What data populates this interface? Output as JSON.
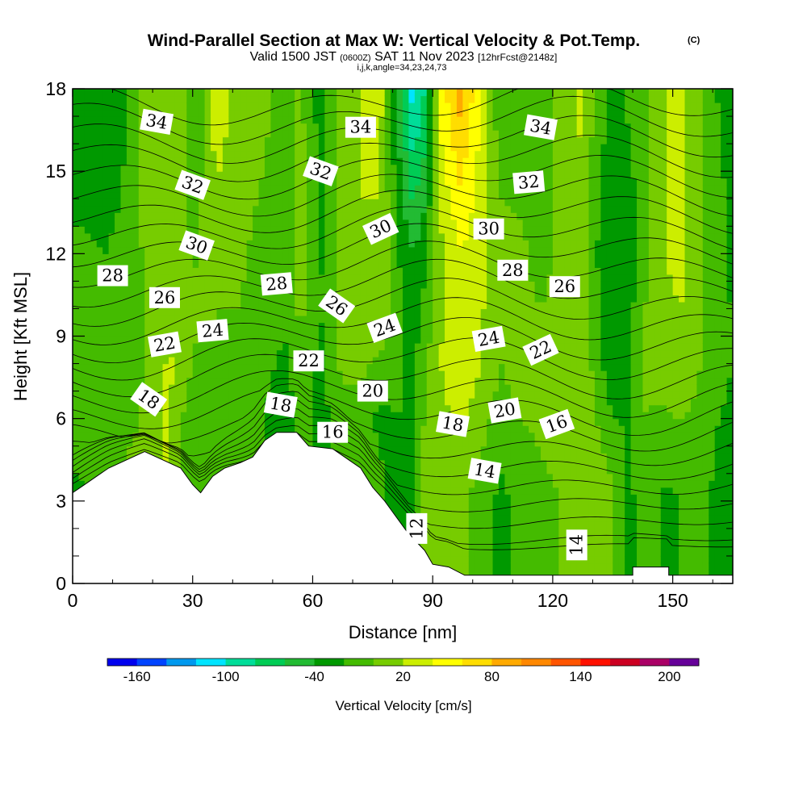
{
  "title": {
    "main": "Wind-Parallel Section at Max W: Vertical Velocity & Pot.Temp.",
    "copyright": "(C)",
    "valid_prefix": "Valid 1500 JST",
    "valid_utc": "(0600Z)",
    "valid_date": "SAT 11 Nov 2023",
    "forecast": "[12hrFcst@2148z]",
    "indices": "i,j,k,angle=34,23,24,73"
  },
  "chart_data": {
    "type": "heatmap",
    "xlabel": "Distance [nm]",
    "ylabel": "Height [Kft MSL]",
    "xlim": [
      0,
      165
    ],
    "ylim": [
      0,
      18
    ],
    "x_ticks": [
      "0",
      "30",
      "60",
      "90",
      "120",
      "150"
    ],
    "y_ticks": [
      "0",
      "3",
      "6",
      "9",
      "12",
      "15",
      "18"
    ],
    "colorbar": {
      "label": "Vertical Velocity [cm/s]",
      "tick_labels": [
        "-160",
        "-100",
        "-40",
        "20",
        "80",
        "140",
        "200"
      ],
      "tick_values": [
        -160,
        -100,
        -40,
        20,
        80,
        140,
        200
      ],
      "bounds": [
        -180,
        220
      ],
      "levels": [
        -180,
        -160,
        -140,
        -120,
        -100,
        -80,
        -60,
        -40,
        -20,
        0,
        20,
        40,
        60,
        80,
        100,
        120,
        140,
        160,
        180,
        200,
        220
      ],
      "colors": [
        "#0000ee",
        "#0044ff",
        "#0099ee",
        "#00e4ff",
        "#00dd99",
        "#00cc55",
        "#22bb33",
        "#009900",
        "#44bb00",
        "#77cc00",
        "#ccee00",
        "#ffff00",
        "#ffdd00",
        "#ffaa00",
        "#ff8800",
        "#ff5500",
        "#ff1100",
        "#cc0022",
        "#aa0066",
        "#660099"
      ]
    },
    "vertical_velocity_columns": [
      {
        "x": 0,
        "bands": [
          [
            3,
            -30
          ],
          [
            6,
            -5
          ],
          [
            18,
            -30
          ]
        ]
      },
      {
        "x": 8,
        "bands": [
          [
            6,
            -10
          ],
          [
            18,
            -30
          ]
        ]
      },
      {
        "x": 14,
        "bands": [
          [
            5,
            0
          ],
          [
            8,
            -15
          ],
          [
            18,
            -20
          ]
        ]
      },
      {
        "x": 19,
        "bands": [
          [
            5,
            5
          ],
          [
            8,
            5
          ],
          [
            18,
            15
          ]
        ]
      },
      {
        "x": 24,
        "bands": [
          [
            6,
            25
          ],
          [
            18,
            10
          ]
        ]
      },
      {
        "x": 28,
        "bands": [
          [
            5,
            -10
          ],
          [
            8,
            10
          ],
          [
            18,
            5
          ]
        ]
      },
      {
        "x": 30,
        "bands": [
          [
            6,
            -10
          ],
          [
            10,
            5
          ],
          [
            18,
            -25
          ]
        ]
      },
      {
        "x": 36,
        "bands": [
          [
            6,
            -5
          ],
          [
            10,
            0
          ],
          [
            18,
            35
          ]
        ]
      },
      {
        "x": 42,
        "bands": [
          [
            6,
            -10
          ],
          [
            10,
            0
          ],
          [
            18,
            10
          ]
        ]
      },
      {
        "x": 48,
        "bands": [
          [
            6,
            -20
          ],
          [
            10,
            -10
          ],
          [
            18,
            5
          ]
        ]
      },
      {
        "x": 53,
        "bands": [
          [
            6,
            -35
          ],
          [
            10,
            -15
          ],
          [
            18,
            -10
          ]
        ]
      },
      {
        "x": 57,
        "bands": [
          [
            6,
            -10
          ],
          [
            10,
            5
          ],
          [
            18,
            5
          ]
        ]
      },
      {
        "x": 62,
        "bands": [
          [
            6,
            -30
          ],
          [
            10,
            -20
          ],
          [
            18,
            -30
          ]
        ]
      },
      {
        "x": 67,
        "bands": [
          [
            6,
            -5
          ],
          [
            10,
            10
          ],
          [
            18,
            10
          ]
        ]
      },
      {
        "x": 72,
        "bands": [
          [
            6,
            -10
          ],
          [
            10,
            20
          ],
          [
            18,
            20
          ]
        ]
      },
      {
        "x": 77,
        "bands": [
          [
            3,
            -15
          ],
          [
            6,
            -25
          ],
          [
            10,
            15
          ],
          [
            18,
            25
          ]
        ]
      },
      {
        "x": 81,
        "bands": [
          [
            3,
            -30
          ],
          [
            6,
            -20
          ],
          [
            10,
            -10
          ],
          [
            18,
            -40
          ]
        ]
      },
      {
        "x": 85,
        "bands": [
          [
            3,
            -20
          ],
          [
            8,
            -25
          ],
          [
            12,
            -40
          ],
          [
            18,
            -110
          ]
        ]
      },
      {
        "x": 88,
        "bands": [
          [
            3,
            10
          ],
          [
            8,
            -5
          ],
          [
            12,
            -25
          ],
          [
            18,
            -80
          ]
        ]
      },
      {
        "x": 92,
        "bands": [
          [
            3,
            10
          ],
          [
            8,
            20
          ],
          [
            12,
            15
          ],
          [
            18,
            50
          ]
        ]
      },
      {
        "x": 97,
        "bands": [
          [
            3,
            5
          ],
          [
            8,
            35
          ],
          [
            12,
            40
          ],
          [
            18,
            90
          ]
        ]
      },
      {
        "x": 102,
        "bands": [
          [
            3,
            -10
          ],
          [
            8,
            20
          ],
          [
            12,
            25
          ],
          [
            18,
            40
          ]
        ]
      },
      {
        "x": 107,
        "bands": [
          [
            3,
            -25
          ],
          [
            8,
            0
          ],
          [
            12,
            10
          ],
          [
            18,
            -20
          ]
        ]
      },
      {
        "x": 112,
        "bands": [
          [
            3,
            -15
          ],
          [
            8,
            10
          ],
          [
            12,
            5
          ],
          [
            18,
            -20
          ]
        ]
      },
      {
        "x": 117,
        "bands": [
          [
            3,
            -5
          ],
          [
            8,
            10
          ],
          [
            12,
            -10
          ],
          [
            18,
            -15
          ]
        ]
      },
      {
        "x": 122,
        "bands": [
          [
            3,
            0
          ],
          [
            8,
            15
          ],
          [
            12,
            5
          ],
          [
            18,
            10
          ]
        ]
      },
      {
        "x": 127,
        "bands": [
          [
            3,
            20
          ],
          [
            8,
            20
          ],
          [
            12,
            10
          ],
          [
            18,
            25
          ]
        ]
      },
      {
        "x": 131,
        "bands": [
          [
            3,
            15
          ],
          [
            8,
            -10
          ],
          [
            12,
            -20
          ],
          [
            18,
            -5
          ]
        ]
      },
      {
        "x": 135,
        "bands": [
          [
            3,
            5
          ],
          [
            8,
            -35
          ],
          [
            12,
            -40
          ],
          [
            18,
            -30
          ]
        ]
      },
      {
        "x": 139,
        "bands": [
          [
            3,
            -25
          ],
          [
            8,
            -20
          ],
          [
            12,
            -35
          ],
          [
            18,
            -15
          ]
        ]
      },
      {
        "x": 143,
        "bands": [
          [
            3,
            -10
          ],
          [
            8,
            5
          ],
          [
            12,
            -5
          ],
          [
            18,
            -10
          ]
        ]
      },
      {
        "x": 148,
        "bands": [
          [
            3,
            -25
          ],
          [
            8,
            10
          ],
          [
            12,
            20
          ],
          [
            18,
            20
          ]
        ]
      },
      {
        "x": 152,
        "bands": [
          [
            3,
            -20
          ],
          [
            8,
            15
          ],
          [
            12,
            25
          ],
          [
            18,
            30
          ]
        ]
      },
      {
        "x": 157,
        "bands": [
          [
            3,
            -15
          ],
          [
            8,
            0
          ],
          [
            12,
            5
          ],
          [
            18,
            0
          ]
        ]
      },
      {
        "x": 161,
        "bands": [
          [
            3,
            -25
          ],
          [
            8,
            -15
          ],
          [
            12,
            -15
          ],
          [
            18,
            -20
          ]
        ]
      },
      {
        "x": 165,
        "bands": [
          [
            3,
            -30
          ],
          [
            8,
            -20
          ],
          [
            18,
            -25
          ]
        ]
      }
    ],
    "terrain_profile": [
      [
        0,
        3.3
      ],
      [
        3,
        3.6
      ],
      [
        6,
        3.9
      ],
      [
        9,
        4.2
      ],
      [
        18,
        4.8
      ],
      [
        27,
        4.2
      ],
      [
        30,
        3.6
      ],
      [
        32,
        3.3
      ],
      [
        35,
        3.9
      ],
      [
        38,
        4.2
      ],
      [
        42,
        4.4
      ],
      [
        45,
        4.6
      ],
      [
        48,
        5.2
      ],
      [
        51,
        5.5
      ],
      [
        56,
        5.5
      ],
      [
        59,
        5.0
      ],
      [
        65,
        4.9
      ],
      [
        69,
        4.5
      ],
      [
        72,
        4.2
      ],
      [
        75,
        3.5
      ],
      [
        78,
        3.0
      ],
      [
        80,
        2.6
      ],
      [
        82,
        2.2
      ],
      [
        84,
        1.8
      ],
      [
        86,
        1.5
      ],
      [
        88,
        1.2
      ],
      [
        90,
        0.7
      ],
      [
        94,
        0.6
      ],
      [
        98,
        0.3
      ],
      [
        140,
        0.3
      ],
      [
        140,
        0.6
      ],
      [
        149,
        0.6
      ],
      [
        149,
        0.3
      ],
      [
        165,
        0.3
      ]
    ],
    "theta_contour_labels": [
      {
        "text": "34",
        "x": 21,
        "y": 16.8,
        "angle": 10
      },
      {
        "text": "34",
        "x": 72,
        "y": 16.6,
        "angle": 0
      },
      {
        "text": "34",
        "x": 117,
        "y": 16.6,
        "angle": 10
      },
      {
        "text": "32",
        "x": 30,
        "y": 14.5,
        "angle": 20
      },
      {
        "text": "32",
        "x": 62,
        "y": 15.0,
        "angle": 20
      },
      {
        "text": "32",
        "x": 114,
        "y": 14.6,
        "angle": -5
      },
      {
        "text": "30",
        "x": 31,
        "y": 12.3,
        "angle": 20
      },
      {
        "text": "30",
        "x": 77,
        "y": 12.9,
        "angle": -25
      },
      {
        "text": "30",
        "x": 104,
        "y": 12.9,
        "angle": 0
      },
      {
        "text": "28",
        "x": 10,
        "y": 11.2,
        "angle": 0
      },
      {
        "text": "28",
        "x": 51,
        "y": 10.9,
        "angle": -5
      },
      {
        "text": "28",
        "x": 110,
        "y": 11.4,
        "angle": 0
      },
      {
        "text": "26",
        "x": 23,
        "y": 10.4,
        "angle": 0
      },
      {
        "text": "26",
        "x": 66,
        "y": 10.1,
        "angle": 35
      },
      {
        "text": "26",
        "x": 123,
        "y": 10.8,
        "angle": 0
      },
      {
        "text": "24",
        "x": 35,
        "y": 9.2,
        "angle": -5
      },
      {
        "text": "24",
        "x": 78,
        "y": 9.3,
        "angle": -20
      },
      {
        "text": "24",
        "x": 104,
        "y": 8.9,
        "angle": -10
      },
      {
        "text": "22",
        "x": 23,
        "y": 8.7,
        "angle": -10
      },
      {
        "text": "22",
        "x": 59,
        "y": 8.1,
        "angle": 0
      },
      {
        "text": "22",
        "x": 117,
        "y": 8.5,
        "angle": -25
      },
      {
        "text": "20",
        "x": 75,
        "y": 7.0,
        "angle": 0
      },
      {
        "text": "20",
        "x": 108,
        "y": 6.3,
        "angle": -10
      },
      {
        "text": "18",
        "x": 19,
        "y": 6.7,
        "angle": 35
      },
      {
        "text": "18",
        "x": 52,
        "y": 6.5,
        "angle": 10
      },
      {
        "text": "18",
        "x": 95,
        "y": 5.8,
        "angle": 10
      },
      {
        "text": "16",
        "x": 65,
        "y": 5.5,
        "angle": 0
      },
      {
        "text": "16",
        "x": 121,
        "y": 5.8,
        "angle": -20
      },
      {
        "text": "14",
        "x": 103,
        "y": 4.1,
        "angle": 10
      },
      {
        "text": "14",
        "x": 126,
        "y": 1.4,
        "angle": -90
      },
      {
        "text": "12",
        "x": 86,
        "y": 2.0,
        "angle": -90
      }
    ]
  }
}
